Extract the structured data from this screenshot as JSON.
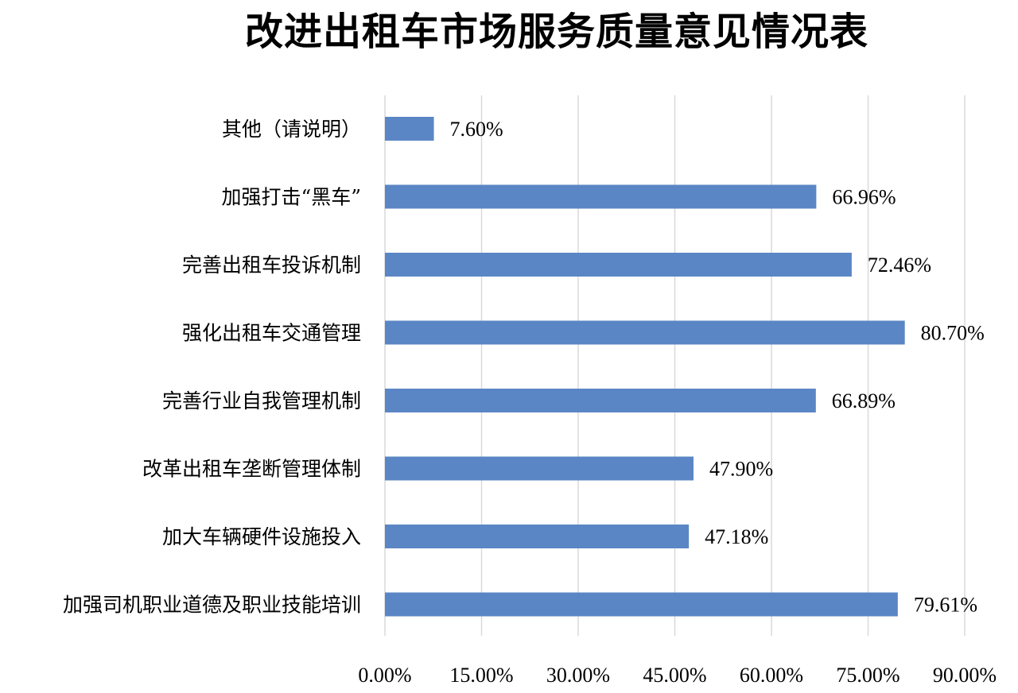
{
  "chart_data": {
    "type": "bar",
    "orientation": "horizontal",
    "title": "改进出租车市场服务质量意见情况表",
    "categories": [
      "其他（请说明）",
      "加强打击“黑车”",
      "完善出租车投诉机制",
      "强化出租车交通管理",
      "完善行业自我管理机制",
      "改革出租车垄断管理体制",
      "加大车辆硬件设施投入",
      "加强司机职业道德及职业技能培训"
    ],
    "values": [
      7.6,
      66.96,
      72.46,
      80.7,
      66.89,
      47.9,
      47.18,
      79.61
    ],
    "value_labels": [
      "7.60%",
      "66.96%",
      "72.46%",
      "80.70%",
      "66.89%",
      "47.90%",
      "47.18%",
      "79.61%"
    ],
    "xlim": [
      0,
      90
    ],
    "xticks": [
      0,
      15,
      30,
      45,
      60,
      75,
      90
    ],
    "xtick_labels": [
      "0.00%",
      "15.00%",
      "30.00%",
      "45.00%",
      "60.00%",
      "75.00%",
      "90.00%"
    ],
    "grid": "vertical",
    "legend": "none",
    "bar_color": "#5b86c5",
    "xlabel": "",
    "ylabel": ""
  }
}
